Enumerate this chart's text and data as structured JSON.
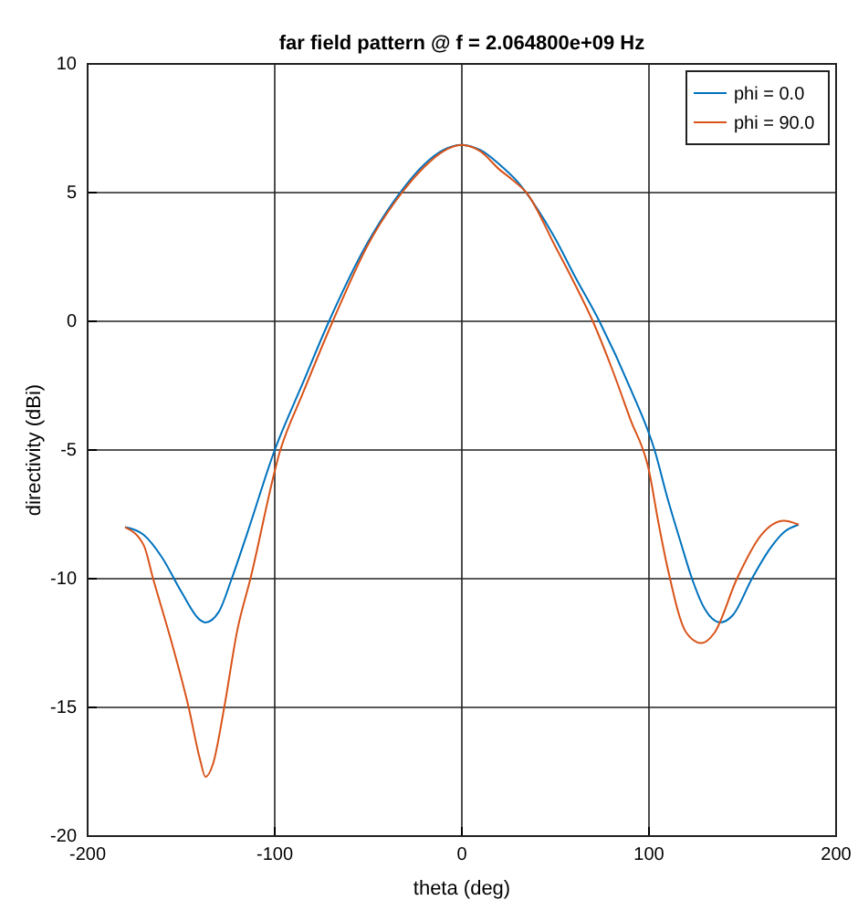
{
  "chart_data": {
    "type": "line",
    "title": "far field pattern @ f = 2.064800e+09 Hz",
    "xlabel": "theta (deg)",
    "ylabel": "directivity (dBi)",
    "xlim": [
      -200,
      200
    ],
    "xticks": [
      -200,
      -100,
      0,
      100,
      200
    ],
    "ylim": [
      -20,
      10
    ],
    "yticks": [
      -20,
      -15,
      -10,
      -5,
      0,
      5,
      10
    ],
    "grid": true,
    "legend": "top right",
    "series": [
      {
        "name": "phi = 0.0",
        "color": "#0072bd",
        "x": [
          -180,
          -170,
          -160,
          -150,
          -140,
          -137,
          -130,
          -123,
          -115,
          -100,
          -85,
          -71,
          -50,
          -33,
          -20,
          -10,
          0,
          10,
          20,
          30,
          40,
          50,
          60,
          73.5,
          90,
          103,
          110,
          117,
          123,
          130,
          138,
          145,
          155,
          165,
          172,
          180
        ],
        "values": [
          -8,
          -8.3,
          -9.2,
          -10.5,
          -11.6,
          -11.7,
          -11.3,
          -10,
          -8.3,
          -5,
          -2.4,
          0,
          3.1,
          5,
          6.1,
          6.65,
          6.85,
          6.65,
          6.1,
          5.4,
          4.4,
          3.2,
          1.8,
          0,
          -2.6,
          -5,
          -6.9,
          -8.6,
          -10,
          -11.2,
          -11.7,
          -11.4,
          -10,
          -8.8,
          -8.2,
          -7.9
        ]
      },
      {
        "name": "phi = 90.0",
        "color": "#d95319",
        "x": [
          -180,
          -170,
          -165,
          -155,
          -146,
          -140,
          -137,
          -133,
          -127,
          -120,
          -113,
          -97,
          -85,
          -69,
          -50,
          -32,
          -20,
          -10,
          0,
          10,
          20,
          27,
          34.5,
          50,
          60,
          70,
          80,
          90,
          100,
          105,
          110,
          120,
          128,
          135,
          147,
          160,
          172,
          180
        ],
        "values": [
          -8,
          -8.7,
          -10,
          -12.5,
          -15,
          -17,
          -17.7,
          -17.2,
          -15,
          -12,
          -10,
          -5,
          -2.8,
          0,
          3,
          5,
          6,
          6.6,
          6.85,
          6.6,
          5.9,
          5.5,
          5,
          2.9,
          1.5,
          0,
          -1.8,
          -3.8,
          -5.8,
          -7.8,
          -9.6,
          -12.1,
          -12.5,
          -12.1,
          -10,
          -8.3,
          -7.75,
          -7.9
        ]
      }
    ]
  }
}
